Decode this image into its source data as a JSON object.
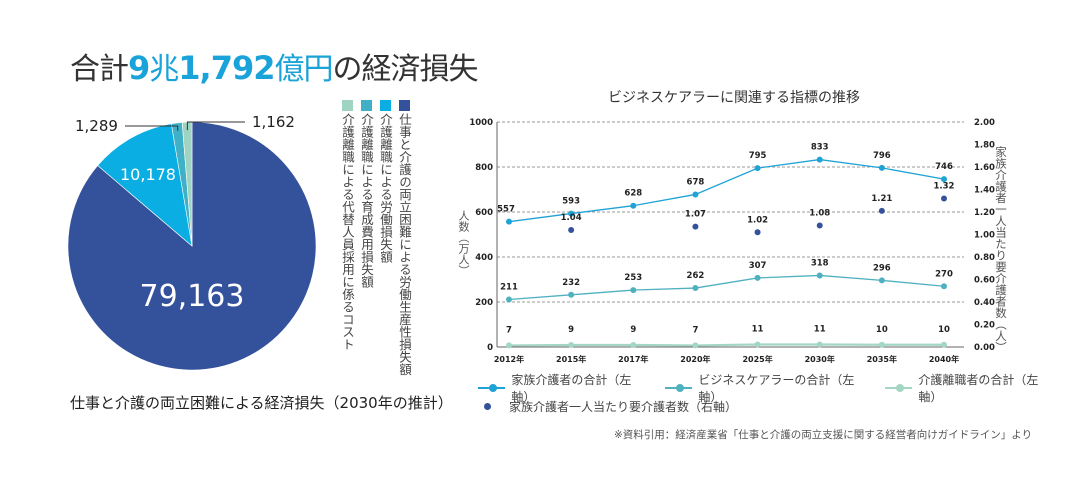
{
  "headline": {
    "prefix": "合計",
    "num1": "9",
    "unit1": "兆",
    "num2": "1,792",
    "unit2": "億円",
    "suffix": "の経済損失"
  },
  "pie_caption": "仕事と介護の両立困難による経済損失（2030年の推計）",
  "line_title": "ビジネスケアラーに関連する指標の推移",
  "source_note": "※資料引用：経済産業省「仕事と介護の両立支援に関する経営者向けガイドライン」より",
  "chart_data": [
    {
      "type": "pie",
      "title": "仕事と介護の両立困難による経済損失（2030年の推計）",
      "unit": "億円",
      "total_label": "合計9兆1,792億円",
      "slices": [
        {
          "label": "仕事と介護の両立困難による労働生産性損失額",
          "value": 79163,
          "display": "79,163",
          "color": "#34529c"
        },
        {
          "label": "介護離職による労働損失額",
          "value": 10178,
          "display": "10,178",
          "color": "#0aaee3"
        },
        {
          "label": "介護離職による育成費用損失額",
          "value": 1289,
          "display": "1,289",
          "color": "#3fb0c6"
        },
        {
          "label": "介護離職による代替人員採用に係るコスト",
          "value": 1162,
          "display": "1,162",
          "color": "#9fd3c2"
        }
      ],
      "legend_position": "right-vertical"
    },
    {
      "type": "line",
      "title": "ビジネスケアラーに関連する指標の推移",
      "categories": [
        "2012年",
        "2015年",
        "2017年",
        "2020年",
        "2025年",
        "2030年",
        "2035年",
        "2040年"
      ],
      "ylabel": "人数（万人）",
      "y2label": "家族介護者一人当たり要介護者数（人）",
      "ylim": [
        0,
        1000
      ],
      "yticks": [
        "0",
        "200",
        "400",
        "600",
        "800",
        "1000"
      ],
      "y2lim": [
        0,
        2.0
      ],
      "y2ticks": [
        "0.00",
        "0.20",
        "0.40",
        "0.60",
        "0.80",
        "1.00",
        "1.20",
        "1.40",
        "1.60",
        "1.80",
        "2.00"
      ],
      "grid": "dashed horizontal at 200, 400, 600, 800, 1000",
      "series": [
        {
          "name": "家族介護者の合計（左軸）",
          "axis": "left",
          "kind": "line",
          "color": "#1fa3d6",
          "values": [
            557,
            593,
            628,
            678,
            795,
            833,
            796,
            746
          ]
        },
        {
          "name": "ビジネスケアラーの合計（左軸）",
          "axis": "left",
          "kind": "line",
          "color": "#4fb1c0",
          "values": [
            211,
            232,
            253,
            262,
            307,
            318,
            296,
            270
          ]
        },
        {
          "name": "介護離職者の合計（左軸）",
          "axis": "left",
          "kind": "line",
          "color": "#a4d6c4",
          "values": [
            7,
            9,
            9,
            7,
            11,
            11,
            10,
            10
          ]
        },
        {
          "name": "家族介護者一人当たり要介護者数（右軸）",
          "axis": "right",
          "kind": "scatter",
          "color": "#34529c",
          "values": [
            null,
            1.04,
            null,
            1.07,
            1.02,
            1.08,
            1.21,
            1.32
          ],
          "labels": [
            null,
            "1.04",
            null,
            "1.07",
            "1.02",
            "1.08",
            "1.21",
            "1.32"
          ]
        }
      ],
      "legend_position": "bottom"
    }
  ]
}
